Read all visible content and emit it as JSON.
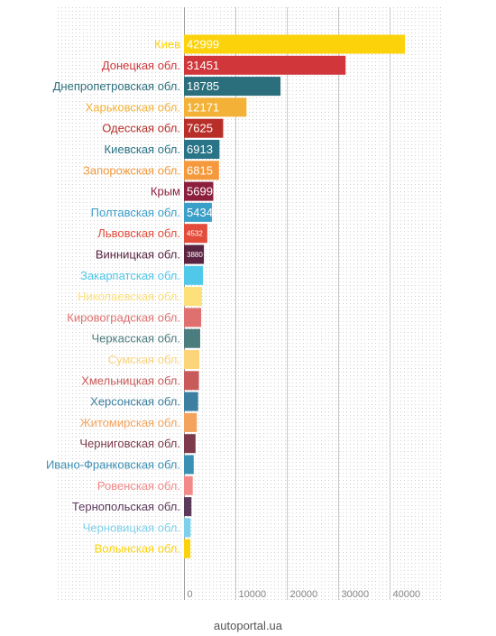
{
  "chart_data": {
    "type": "bar",
    "orientation": "horizontal",
    "grid": true,
    "xlim": [
      0,
      46000
    ],
    "x_ticks": [
      "0",
      "10000",
      "20000",
      "30000",
      "40000"
    ],
    "x_tick_values": [
      0,
      10000,
      20000,
      30000,
      40000
    ],
    "categories": [
      "Киев",
      "Донецкая обл.",
      "Днепропетровская обл.",
      "Харьковская обл.",
      "Одесская обл.",
      "Киевская обл.",
      "Запорожская обл.",
      "Крым",
      "Полтавская обл.",
      "Львовская обл.",
      "Винницкая обл.",
      "Закарпатская обл.",
      "Николаевская обл.",
      "Кировоградская обл.",
      "Черкасская обл.",
      "Сумская обл.",
      "Хмельницкая обл.",
      "Херсонская обл.",
      "Житомирская обл.",
      "Черниговская обл.",
      "Ивано-Франковская обл.",
      "Ровенская обл.",
      "Тернопольская обл.",
      "Черновицкая обл.",
      "Волынская обл."
    ],
    "values": [
      42999,
      31451,
      18785,
      12171,
      7625,
      6913,
      6815,
      5699,
      5434,
      4532,
      3880,
      3700,
      3500,
      3350,
      3150,
      3000,
      2900,
      2750,
      2500,
      2250,
      1900,
      1700,
      1450,
      1300,
      1250
    ],
    "value_labels": [
      "42999",
      "31451",
      "18785",
      "12171",
      "7625",
      "6913",
      "6815",
      "5699",
      "5434",
      "4532",
      "3880",
      "",
      "",
      "",
      "",
      "",
      "",
      "",
      "",
      "",
      "",
      "",
      "",
      "",
      ""
    ],
    "colors": [
      "#fcd20a",
      "#d0363a",
      "#2b6f7d",
      "#f3b237",
      "#b82f2a",
      "#2a7487",
      "#f49a3c",
      "#8b1f3c",
      "#3a9fc9",
      "#e34b3a",
      "#5a2341",
      "#4fc8ea",
      "#fde07a",
      "#e07070",
      "#4b7c7e",
      "#fcd47a",
      "#c95a5a",
      "#3c7fa0",
      "#f4a35c",
      "#7c3a4a",
      "#3a8fb5",
      "#f38a8a",
      "#5c3a5c",
      "#7fd0ea",
      "#fcd20a"
    ]
  },
  "footer": {
    "source": "autoportal.ua"
  }
}
